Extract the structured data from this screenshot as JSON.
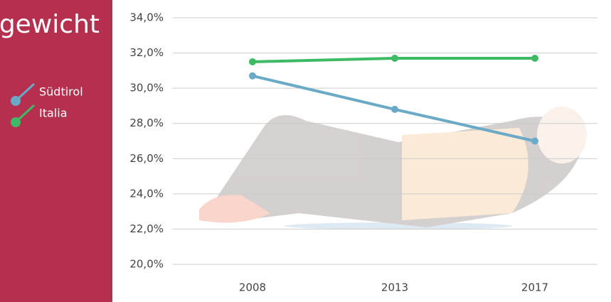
{
  "chart_data": {
    "type": "line",
    "title": "gewicht",
    "categories": [
      "2008",
      "2013",
      "2017"
    ],
    "series": [
      {
        "name": "Südtirol",
        "color": "#6aaac6",
        "values": [
          30.7,
          28.8,
          27.0
        ]
      },
      {
        "name": "Italia",
        "color": "#3dbb64",
        "values": [
          31.5,
          31.7,
          31.7
        ]
      }
    ],
    "ylim": [
      20,
      34
    ],
    "yticks": [
      {
        "value": 20,
        "label": "20,0%"
      },
      {
        "value": 22,
        "label": "22,0%"
      },
      {
        "value": 24,
        "label": "24,0%"
      },
      {
        "value": 26,
        "label": "26,0%"
      },
      {
        "value": 28,
        "label": "28,0%"
      },
      {
        "value": 30,
        "label": "30,0%"
      },
      {
        "value": 32,
        "label": "32,0%"
      },
      {
        "value": 34,
        "label": "34,0%"
      }
    ],
    "grid": true
  }
}
